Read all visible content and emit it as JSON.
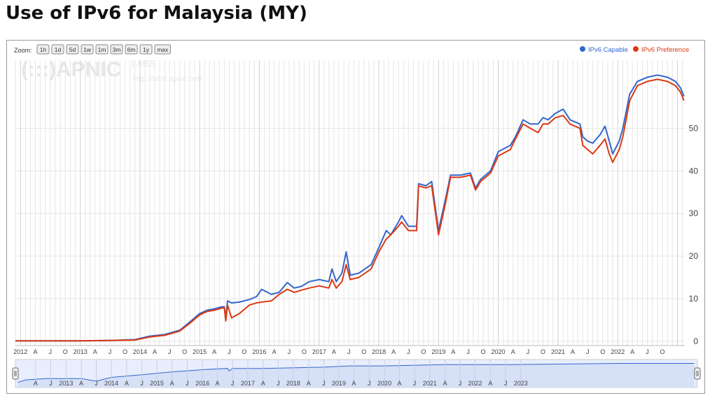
{
  "page": {
    "title": "Use of IPv6 for Malaysia (MY)"
  },
  "toolbar": {
    "zoom_label": "Zoom:",
    "buttons": [
      "1h",
      "1d",
      "5d",
      "1w",
      "1m",
      "3m",
      "6m",
      "1y",
      "max"
    ]
  },
  "watermark": {
    "brand": "(:::)APNIC",
    "labs": "LABS",
    "url": "http://labs.apnic.net/"
  },
  "colors": {
    "capable": "#3366cc",
    "preference": "#dc3912",
    "grid": "#e6e6e6",
    "navigator_fill": "#e8eefc"
  },
  "chart_data": {
    "type": "line",
    "title": "Use of IPv6 for Malaysia (MY)",
    "xlabel": "",
    "ylabel": "",
    "xlim": [
      "2011-12-01",
      "2023-02-15"
    ],
    "ylim": [
      -1,
      66
    ],
    "yticks": [
      0,
      10,
      20,
      30,
      40,
      50
    ],
    "grid": true,
    "legend_position": "top-right",
    "x_tick_labels": [
      "2012",
      "A",
      "J",
      "O",
      "2013",
      "A",
      "J",
      "O",
      "2014",
      "A",
      "J",
      "O",
      "2015",
      "A",
      "J",
      "O",
      "2016",
      "A",
      "J",
      "O",
      "2017",
      "A",
      "J",
      "O",
      "2018",
      "A",
      "J",
      "O",
      "2019",
      "A",
      "J",
      "O",
      "2020",
      "A",
      "J",
      "O",
      "2021",
      "A",
      "J",
      "O",
      "2022",
      "A",
      "J",
      "O"
    ],
    "navigator_tick_labels": [
      "A",
      "J",
      "2013",
      "A",
      "J",
      "2014",
      "A",
      "J",
      "2015",
      "A",
      "J",
      "2016",
      "A",
      "J",
      "2017",
      "A",
      "J",
      "2018",
      "A",
      "J",
      "2019",
      "A",
      "J",
      "2020",
      "A",
      "J",
      "2021",
      "A",
      "J",
      "2022",
      "A",
      "J",
      "2023"
    ],
    "series": [
      {
        "name": "IPv6 Capable",
        "points": [
          [
            "2011-12-01",
            0.1
          ],
          [
            "2012-06-01",
            0.1
          ],
          [
            "2013-01-01",
            0.1
          ],
          [
            "2013-07-01",
            0.2
          ],
          [
            "2013-12-01",
            0.4
          ],
          [
            "2014-03-01",
            1.2
          ],
          [
            "2014-06-01",
            1.6
          ],
          [
            "2014-09-01",
            2.6
          ],
          [
            "2014-11-01",
            4.5
          ],
          [
            "2015-01-01",
            6.5
          ],
          [
            "2015-02-15",
            7.3
          ],
          [
            "2015-04-01",
            7.6
          ],
          [
            "2015-05-15",
            8.1
          ],
          [
            "2015-06-01",
            8.1
          ],
          [
            "2015-06-10",
            5.5
          ],
          [
            "2015-06-20",
            9.5
          ],
          [
            "2015-07-15",
            9.0
          ],
          [
            "2015-09-01",
            9.2
          ],
          [
            "2015-11-01",
            9.8
          ],
          [
            "2015-12-15",
            10.5
          ],
          [
            "2016-01-15",
            12.2
          ],
          [
            "2016-03-15",
            11.0
          ],
          [
            "2016-05-01",
            11.5
          ],
          [
            "2016-06-20",
            13.8
          ],
          [
            "2016-08-01",
            12.5
          ],
          [
            "2016-09-15",
            12.9
          ],
          [
            "2016-11-01",
            14.0
          ],
          [
            "2017-01-01",
            14.5
          ],
          [
            "2017-03-01",
            14.0
          ],
          [
            "2017-03-20",
            17.0
          ],
          [
            "2017-04-15",
            14.0
          ],
          [
            "2017-05-20",
            16.0
          ],
          [
            "2017-06-15",
            21.0
          ],
          [
            "2017-07-10",
            15.5
          ],
          [
            "2017-09-01",
            16.0
          ],
          [
            "2017-11-15",
            18.0
          ],
          [
            "2018-01-01",
            22.0
          ],
          [
            "2018-02-15",
            26.0
          ],
          [
            "2018-03-15",
            25.0
          ],
          [
            "2018-05-01",
            28.0
          ],
          [
            "2018-05-20",
            29.5
          ],
          [
            "2018-07-01",
            27.0
          ],
          [
            "2018-08-20",
            27.0
          ],
          [
            "2018-09-01",
            37.0
          ],
          [
            "2018-10-15",
            36.5
          ],
          [
            "2018-11-20",
            37.5
          ],
          [
            "2019-01-01",
            26.0
          ],
          [
            "2019-02-10",
            33.0
          ],
          [
            "2019-03-15",
            39.0
          ],
          [
            "2019-05-15",
            39.0
          ],
          [
            "2019-07-15",
            39.5
          ],
          [
            "2019-08-15",
            36.0
          ],
          [
            "2019-09-15",
            38.0
          ],
          [
            "2019-11-15",
            40.0
          ],
          [
            "2020-01-01",
            44.5
          ],
          [
            "2020-03-15",
            46.0
          ],
          [
            "2020-04-15",
            48.0
          ],
          [
            "2020-06-01",
            52.0
          ],
          [
            "2020-07-15",
            51.0
          ],
          [
            "2020-09-01",
            51.0
          ],
          [
            "2020-10-01",
            52.5
          ],
          [
            "2020-11-01",
            52.0
          ],
          [
            "2020-12-15",
            53.5
          ],
          [
            "2021-02-01",
            54.5
          ],
          [
            "2021-03-15",
            52.0
          ],
          [
            "2021-05-15",
            51.0
          ],
          [
            "2021-06-01",
            48.0
          ],
          [
            "2021-07-01",
            47.0
          ],
          [
            "2021-08-01",
            46.5
          ],
          [
            "2021-09-15",
            48.5
          ],
          [
            "2021-10-15",
            50.5
          ],
          [
            "2021-11-10",
            47.0
          ],
          [
            "2021-12-01",
            44.0
          ],
          [
            "2022-01-10",
            47.0
          ],
          [
            "2022-02-01",
            50.0
          ],
          [
            "2022-03-15",
            58.0
          ],
          [
            "2022-05-01",
            61.0
          ],
          [
            "2022-07-01",
            62.0
          ],
          [
            "2022-09-01",
            62.5
          ],
          [
            "2022-11-01",
            62.0
          ],
          [
            "2022-12-20",
            61.0
          ],
          [
            "2023-01-20",
            59.5
          ],
          [
            "2023-02-10",
            57.5
          ]
        ]
      },
      {
        "name": "IPv6 Preference",
        "points": [
          [
            "2011-12-01",
            0.1
          ],
          [
            "2012-06-01",
            0.1
          ],
          [
            "2013-01-01",
            0.1
          ],
          [
            "2013-07-01",
            0.2
          ],
          [
            "2013-12-01",
            0.3
          ],
          [
            "2014-03-01",
            1.0
          ],
          [
            "2014-06-01",
            1.4
          ],
          [
            "2014-09-01",
            2.4
          ],
          [
            "2014-11-01",
            4.2
          ],
          [
            "2015-01-01",
            6.2
          ],
          [
            "2015-02-15",
            7.0
          ],
          [
            "2015-04-01",
            7.3
          ],
          [
            "2015-05-15",
            7.8
          ],
          [
            "2015-06-01",
            7.8
          ],
          [
            "2015-06-10",
            4.8
          ],
          [
            "2015-06-20",
            8.5
          ],
          [
            "2015-07-15",
            5.5
          ],
          [
            "2015-09-01",
            6.5
          ],
          [
            "2015-11-01",
            8.5
          ],
          [
            "2015-12-15",
            9.0
          ],
          [
            "2016-01-15",
            9.2
          ],
          [
            "2016-03-15",
            9.5
          ],
          [
            "2016-05-01",
            11.0
          ],
          [
            "2016-06-20",
            12.2
          ],
          [
            "2016-08-01",
            11.5
          ],
          [
            "2016-09-15",
            12.0
          ],
          [
            "2016-11-01",
            12.5
          ],
          [
            "2017-01-01",
            13.0
          ],
          [
            "2017-03-01",
            12.5
          ],
          [
            "2017-03-20",
            14.5
          ],
          [
            "2017-04-15",
            12.5
          ],
          [
            "2017-05-20",
            14.0
          ],
          [
            "2017-06-15",
            18.0
          ],
          [
            "2017-07-10",
            14.5
          ],
          [
            "2017-09-01",
            15.0
          ],
          [
            "2017-11-15",
            17.0
          ],
          [
            "2018-01-01",
            21.0
          ],
          [
            "2018-02-15",
            24.0
          ],
          [
            "2018-03-15",
            25.0
          ],
          [
            "2018-05-01",
            27.0
          ],
          [
            "2018-05-20",
            28.0
          ],
          [
            "2018-07-01",
            26.0
          ],
          [
            "2018-08-20",
            26.0
          ],
          [
            "2018-09-01",
            36.5
          ],
          [
            "2018-10-15",
            36.0
          ],
          [
            "2018-11-20",
            36.5
          ],
          [
            "2019-01-01",
            25.0
          ],
          [
            "2019-02-10",
            32.0
          ],
          [
            "2019-03-15",
            38.5
          ],
          [
            "2019-05-15",
            38.5
          ],
          [
            "2019-07-15",
            39.0
          ],
          [
            "2019-08-15",
            35.5
          ],
          [
            "2019-09-15",
            37.5
          ],
          [
            "2019-11-15",
            39.5
          ],
          [
            "2020-01-01",
            43.5
          ],
          [
            "2020-03-15",
            45.0
          ],
          [
            "2020-04-15",
            47.5
          ],
          [
            "2020-06-01",
            51.0
          ],
          [
            "2020-07-15",
            50.0
          ],
          [
            "2020-09-01",
            49.0
          ],
          [
            "2020-10-01",
            51.0
          ],
          [
            "2020-11-01",
            51.0
          ],
          [
            "2020-12-15",
            52.5
          ],
          [
            "2021-02-01",
            53.0
          ],
          [
            "2021-03-15",
            51.0
          ],
          [
            "2021-05-15",
            50.0
          ],
          [
            "2021-06-01",
            46.0
          ],
          [
            "2021-07-01",
            45.0
          ],
          [
            "2021-08-01",
            44.0
          ],
          [
            "2021-09-15",
            46.0
          ],
          [
            "2021-10-15",
            47.5
          ],
          [
            "2021-11-10",
            44.0
          ],
          [
            "2021-12-01",
            42.0
          ],
          [
            "2022-01-10",
            45.0
          ],
          [
            "2022-02-01",
            48.0
          ],
          [
            "2022-03-15",
            56.5
          ],
          [
            "2022-05-01",
            60.0
          ],
          [
            "2022-07-01",
            61.0
          ],
          [
            "2022-09-01",
            61.5
          ],
          [
            "2022-11-01",
            61.0
          ],
          [
            "2022-12-20",
            60.0
          ],
          [
            "2023-01-20",
            58.5
          ],
          [
            "2023-02-10",
            56.5
          ]
        ]
      }
    ],
    "navigator_series": [
      [
        "2011-12-15",
        4
      ],
      [
        "2012-02-01",
        6
      ],
      [
        "2012-06-01",
        7
      ],
      [
        "2013-01-01",
        7
      ],
      [
        "2013-04-01",
        5
      ],
      [
        "2013-07-01",
        8
      ],
      [
        "2014-01-01",
        10
      ],
      [
        "2014-06-01",
        12
      ],
      [
        "2015-01-01",
        14
      ],
      [
        "2015-06-01",
        15
      ],
      [
        "2015-06-10",
        13
      ],
      [
        "2015-07-01",
        15
      ],
      [
        "2016-01-01",
        15
      ],
      [
        "2017-01-01",
        16
      ],
      [
        "2017-06-01",
        17
      ],
      [
        "2018-01-01",
        17
      ],
      [
        "2019-01-01",
        18
      ],
      [
        "2020-01-01",
        18
      ],
      [
        "2021-01-01",
        18.5
      ],
      [
        "2022-01-01",
        19
      ],
      [
        "2023-02-10",
        19
      ]
    ]
  }
}
